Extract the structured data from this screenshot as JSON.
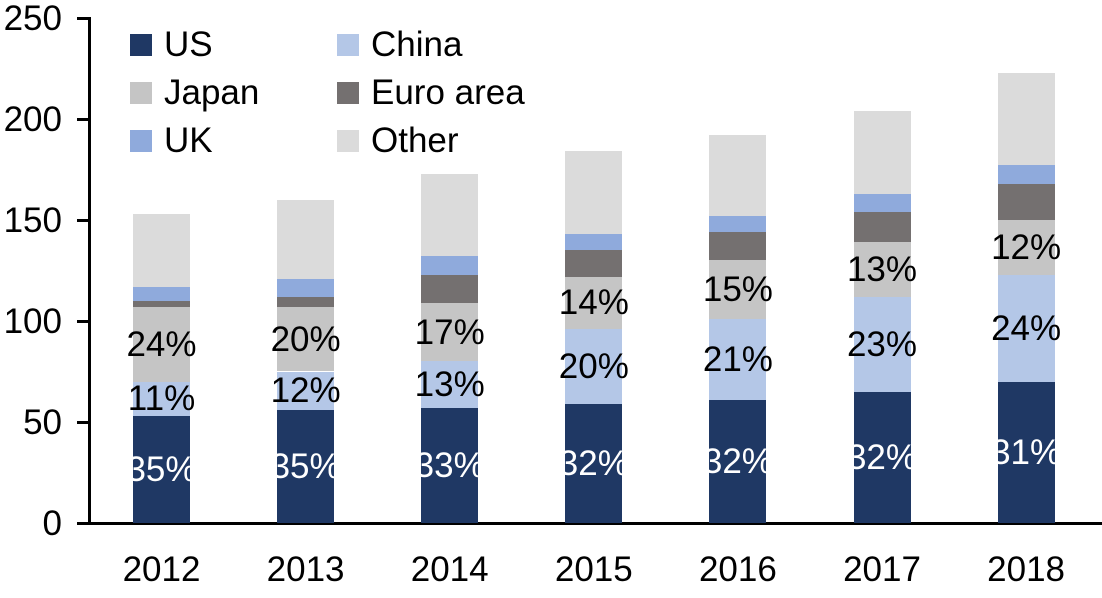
{
  "chart_data": {
    "type": "bar",
    "stacked": true,
    "title": "",
    "xlabel": "",
    "ylabel": "",
    "categories": [
      "2012",
      "2013",
      "2014",
      "2015",
      "2016",
      "2017",
      "2018"
    ],
    "series": [
      {
        "name": "US",
        "color": "#1F3864",
        "values": [
          53,
          56,
          57,
          59,
          61,
          65,
          70
        ],
        "labels": [
          "35%",
          "35%",
          "33%",
          "32%",
          "32%",
          "32%",
          "31%"
        ],
        "label_color": "#FFFFFF"
      },
      {
        "name": "China",
        "color": "#B4C7E7",
        "values": [
          17,
          19,
          23,
          37,
          40,
          47,
          53
        ],
        "labels": [
          "11%",
          "12%",
          "13%",
          "20%",
          "21%",
          "23%",
          "24%"
        ],
        "label_color": "#000000"
      },
      {
        "name": "Japan",
        "color": "#C5C5C5",
        "values": [
          37,
          32,
          29,
          26,
          29,
          27,
          27
        ],
        "labels": [
          "24%",
          "20%",
          "17%",
          "14%",
          "15%",
          "13%",
          "12%"
        ],
        "label_color": "#000000"
      },
      {
        "name": "Euro area",
        "color": "#747070",
        "values": [
          3,
          5,
          14,
          13,
          14,
          15,
          18
        ],
        "labels": null,
        "label_color": null
      },
      {
        "name": "UK",
        "color": "#8FAADC",
        "values": [
          7,
          9,
          9,
          8,
          8,
          9,
          9
        ],
        "labels": null,
        "label_color": null
      },
      {
        "name": "Other",
        "color": "#DBDBDB",
        "values": [
          36,
          39,
          41,
          41,
          40,
          41,
          46
        ],
        "labels": null,
        "label_color": null
      }
    ],
    "totals": [
      153,
      160,
      173,
      184,
      192,
      204,
      223
    ],
    "ylim": [
      0,
      250
    ],
    "yticks": [
      0,
      50,
      100,
      150,
      200,
      250
    ],
    "ytick_labels": [
      "0",
      "50",
      "100",
      "150",
      "200",
      "250"
    ],
    "grid": false,
    "legend_position": "top-left",
    "legend_columns": 2,
    "legend_order": [
      "US",
      "China",
      "Japan",
      "Euro area",
      "UK",
      "Other"
    ],
    "axis_color": "#000000",
    "text_color": "#000000"
  }
}
